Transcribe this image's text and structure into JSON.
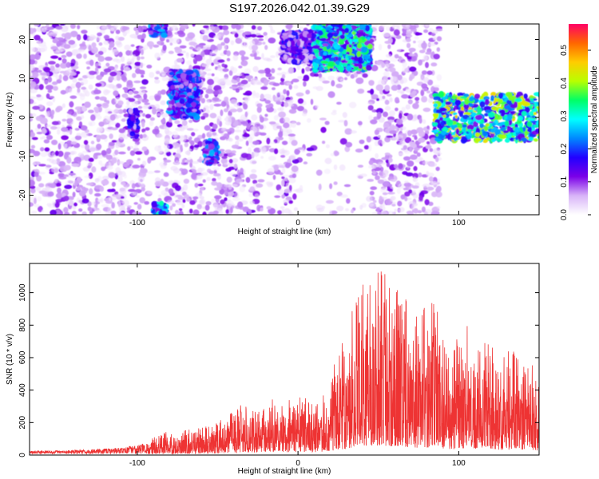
{
  "title": "S197.2026.042.01.39.G29",
  "chart_data": [
    {
      "type": "heatmap",
      "xlabel": "Height of straight line (km)",
      "ylabel": "Frequency (Hz)",
      "xlim": [
        -167,
        150
      ],
      "ylim": [
        -25,
        24
      ],
      "xticks": [
        "-100",
        "0",
        "100"
      ],
      "yticks": [
        "20",
        "10",
        "0",
        "-10",
        "-20"
      ],
      "grid": false,
      "colorbar": {
        "label": "Normalized spectral amplitude",
        "range": [
          0,
          0.58
        ],
        "ticks": [
          "0.0",
          "0.1",
          "0.2",
          "0.3",
          "0.4",
          "0.5"
        ],
        "colors": [
          "#ffffff",
          "#d8b4f8",
          "#7b00e8",
          "#2200ff",
          "#0088ff",
          "#00ffff",
          "#00ff66",
          "#b8ff00",
          "#ffcc00",
          "#ff6600",
          "#ff0066"
        ]
      },
      "features": [
        {
          "x_range": [
            -167,
            88
          ],
          "y_range": [
            -25,
            24
          ],
          "level": 0.06
        },
        {
          "x_range": [
            -105,
            -100
          ],
          "y_range": [
            -5,
            2
          ],
          "level": 0.15
        },
        {
          "x_range": [
            -92,
            -82
          ],
          "y_range": [
            21,
            24
          ],
          "level": 0.2
        },
        {
          "x_range": [
            -90,
            -82
          ],
          "y_range": [
            -25,
            -22
          ],
          "level": 0.25
        },
        {
          "x_range": [
            -80,
            -62
          ],
          "y_range": [
            0,
            12
          ],
          "level": 0.2
        },
        {
          "x_range": [
            -58,
            -50
          ],
          "y_range": [
            -12,
            -6
          ],
          "level": 0.2
        },
        {
          "x_range": [
            -10,
            10
          ],
          "y_range": [
            14,
            22
          ],
          "level": 0.15
        },
        {
          "x_range": [
            10,
            45
          ],
          "y_range": [
            12,
            24
          ],
          "level": 0.3
        },
        {
          "x_range": [
            85,
            150
          ],
          "y_range": [
            -6,
            6
          ],
          "level": 0.35
        }
      ]
    },
    {
      "type": "line",
      "xlabel": "Height of straight line (km)",
      "ylabel": "SNR (10 * v/v)",
      "xlim": [
        -167,
        150
      ],
      "ylim": [
        0,
        1180
      ],
      "xticks": [
        "-100",
        "0",
        "100"
      ],
      "yticks": [
        "0",
        "200",
        "400",
        "600",
        "800",
        "1000"
      ],
      "grid": false,
      "series": [
        {
          "color": "#ee3333",
          "envelope": [
            {
              "x": -167,
              "y": 25
            },
            {
              "x": -140,
              "y": 30
            },
            {
              "x": -110,
              "y": 45
            },
            {
              "x": -95,
              "y": 75
            },
            {
              "x": -85,
              "y": 140
            },
            {
              "x": -70,
              "y": 160
            },
            {
              "x": -55,
              "y": 185
            },
            {
              "x": -45,
              "y": 230
            },
            {
              "x": -35,
              "y": 330
            },
            {
              "x": -25,
              "y": 300
            },
            {
              "x": -15,
              "y": 360
            },
            {
              "x": -5,
              "y": 340
            },
            {
              "x": 5,
              "y": 370
            },
            {
              "x": 12,
              "y": 340
            },
            {
              "x": 20,
              "y": 520
            },
            {
              "x": 30,
              "y": 760
            },
            {
              "x": 35,
              "y": 970
            },
            {
              "x": 40,
              "y": 1050
            },
            {
              "x": 50,
              "y": 1180
            },
            {
              "x": 60,
              "y": 1040
            },
            {
              "x": 75,
              "y": 900
            },
            {
              "x": 85,
              "y": 960
            },
            {
              "x": 95,
              "y": 650
            },
            {
              "x": 105,
              "y": 860
            },
            {
              "x": 115,
              "y": 720
            },
            {
              "x": 125,
              "y": 660
            },
            {
              "x": 135,
              "y": 640
            },
            {
              "x": 150,
              "y": 560
            }
          ]
        }
      ]
    }
  ]
}
